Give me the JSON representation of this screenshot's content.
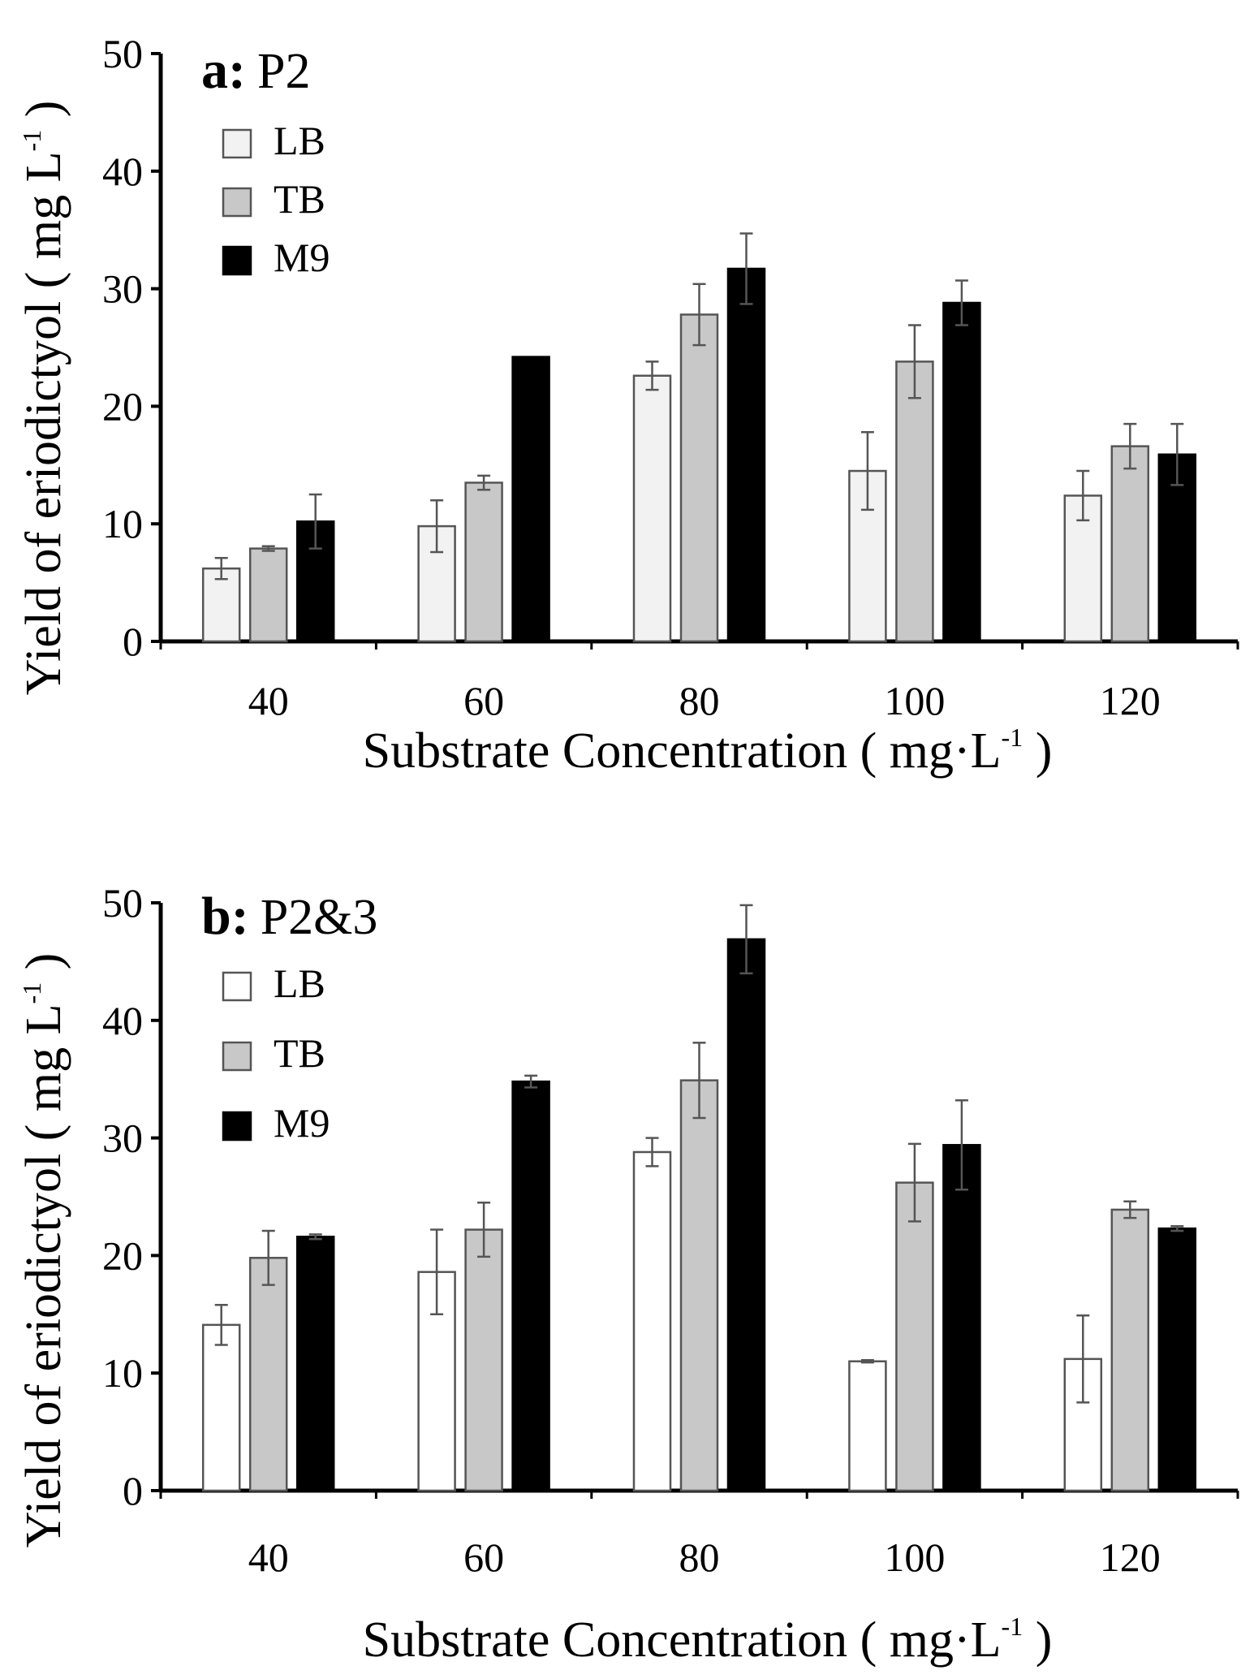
{
  "chart_data": [
    {
      "type": "bar",
      "panel_letter": "a:",
      "panel_name": "P2",
      "xlabel_main": "Substrate Concentration ( mg·L",
      "xlabel_sup": "-1",
      "xlabel_close": " )",
      "ylabel_main": "Yield of eriodictyol ( mg L",
      "ylabel_sup": "-1",
      "ylabel_close": " )",
      "ylim": [
        0,
        50
      ],
      "yticks": [
        "0",
        "10",
        "20",
        "30",
        "40",
        "50"
      ],
      "categories": [
        "40",
        "60",
        "80",
        "100",
        "120"
      ],
      "legend": [
        "LB",
        "TB",
        "M9"
      ],
      "colors": [
        "#f2f2f2",
        "#c8c8c8",
        "#000000"
      ],
      "series": [
        {
          "name": "LB",
          "values": [
            6.2,
            9.8,
            22.6,
            14.5,
            12.4
          ],
          "errors": [
            0.9,
            2.2,
            1.2,
            3.3,
            2.1
          ]
        },
        {
          "name": "TB",
          "values": [
            7.9,
            13.5,
            27.8,
            23.8,
            16.6
          ],
          "errors": [
            0.2,
            0.6,
            2.6,
            3.1,
            1.9
          ]
        },
        {
          "name": "M9",
          "values": [
            10.2,
            24.2,
            31.7,
            28.8,
            15.9
          ],
          "errors": [
            2.3,
            0,
            3.0,
            1.9,
            2.6
          ]
        }
      ]
    },
    {
      "type": "bar",
      "panel_letter": "b:",
      "panel_name": "P2&3",
      "xlabel_main": "Substrate Concentration ( mg·L",
      "xlabel_sup": "-1",
      "xlabel_close": " )",
      "ylabel_main": "Yield of eriodictyol ( mg L",
      "ylabel_sup": "-1",
      "ylabel_close": " )",
      "ylim": [
        0,
        50
      ],
      "yticks": [
        "0",
        "10",
        "20",
        "30",
        "40",
        "50"
      ],
      "categories": [
        "40",
        "60",
        "80",
        "100",
        "120"
      ],
      "legend": [
        "LB",
        "TB",
        "M9"
      ],
      "colors": [
        "#ffffff",
        "#c8c8c8",
        "#000000"
      ],
      "series": [
        {
          "name": "LB",
          "values": [
            14.1,
            18.6,
            28.8,
            11.0,
            11.2
          ],
          "errors": [
            1.7,
            3.6,
            1.2,
            0.1,
            3.7
          ]
        },
        {
          "name": "TB",
          "values": [
            19.8,
            22.2,
            34.9,
            26.2,
            23.9
          ],
          "errors": [
            2.3,
            2.3,
            3.2,
            3.3,
            0.7
          ]
        },
        {
          "name": "M9",
          "values": [
            21.6,
            34.8,
            46.9,
            29.4,
            22.3
          ],
          "errors": [
            0.2,
            0.5,
            2.9,
            3.8,
            0.2
          ]
        }
      ]
    }
  ]
}
